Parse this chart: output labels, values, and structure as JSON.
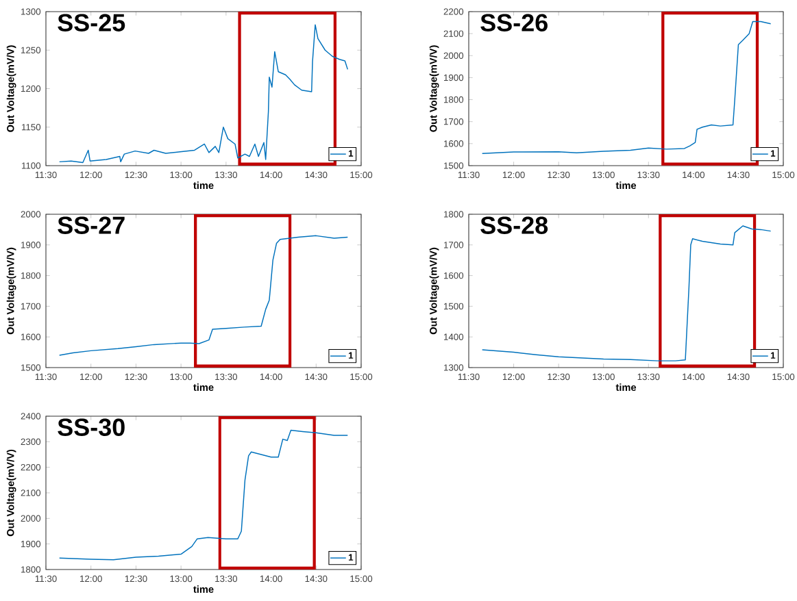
{
  "chart_data": [
    {
      "type": "line",
      "title": "SS-25",
      "xlabel": "time",
      "ylabel": "Out Voltage(mV/V)",
      "xlim": [
        11.5,
        15
      ],
      "ylim": [
        1100,
        1300
      ],
      "legend": "bottom right",
      "xticks": [
        {
          "value": 11.5,
          "label": "11:30"
        },
        {
          "value": 12,
          "label": "12:00"
        },
        {
          "value": 12.5,
          "label": "12:30"
        },
        {
          "value": 13,
          "label": "13:00"
        },
        {
          "value": 13.5,
          "label": "13:30"
        },
        {
          "value": 14,
          "label": "14:00"
        },
        {
          "value": 14.5,
          "label": "14:30"
        },
        {
          "value": 15,
          "label": "15:00"
        }
      ],
      "yticks": [
        1100,
        1150,
        1200,
        1250,
        1300
      ],
      "bands": [
        {
          "axis": "x",
          "from": 13.65,
          "to": 14.71
        }
      ],
      "x": [
        11.65,
        11.78,
        11.91,
        11.97,
        11.99,
        12.17,
        12.32,
        12.33,
        12.37,
        12.49,
        12.64,
        12.7,
        12.83,
        12.99,
        13.15,
        13.26,
        13.31,
        13.38,
        13.42,
        13.47,
        13.52,
        13.6,
        13.63,
        13.71,
        13.76,
        13.82,
        13.86,
        13.92,
        13.94,
        13.97,
        13.98,
        14.01,
        14.04,
        14.08,
        14.16,
        14.21,
        14.26,
        14.34,
        14.45,
        14.46,
        14.49,
        14.52,
        14.6,
        14.68,
        14.76,
        14.82,
        14.85
      ],
      "series": [
        {
          "name": "1",
          "color": "#0072bd",
          "values": [
            1105,
            1106,
            1104,
            1120,
            1106,
            1108,
            1112,
            1105,
            1115,
            1119,
            1116,
            1120,
            1116,
            1118,
            1120,
            1128,
            1117,
            1125,
            1117,
            1150,
            1135,
            1128,
            1110,
            1115,
            1112,
            1128,
            1112,
            1130,
            1108,
            1170,
            1215,
            1202,
            1248,
            1222,
            1218,
            1212,
            1205,
            1198,
            1196,
            1235,
            1283,
            1265,
            1250,
            1242,
            1238,
            1236,
            1225
          ]
        }
      ]
    },
    {
      "type": "line",
      "title": "SS-26",
      "xlabel": "time",
      "ylabel": "Out Voltage(mV/V)",
      "xlim": [
        11.5,
        15
      ],
      "ylim": [
        1500,
        2200
      ],
      "legend": "bottom right",
      "xticks": [
        {
          "value": 11.5,
          "label": "11:30"
        },
        {
          "value": 12,
          "label": "12:00"
        },
        {
          "value": 12.5,
          "label": "12:30"
        },
        {
          "value": 13,
          "label": "13:00"
        },
        {
          "value": 13.5,
          "label": "13:30"
        },
        {
          "value": 14,
          "label": "14:00"
        },
        {
          "value": 14.5,
          "label": "14:30"
        },
        {
          "value": 15,
          "label": "15:00"
        }
      ],
      "yticks": [
        1500,
        1600,
        1700,
        1800,
        1900,
        2000,
        2100,
        2200
      ],
      "bands": [
        {
          "axis": "x",
          "from": 13.66,
          "to": 14.71
        }
      ],
      "x": [
        11.65,
        12.0,
        12.5,
        12.7,
        13.0,
        13.3,
        13.5,
        13.7,
        13.9,
        13.96,
        14.02,
        14.04,
        14.1,
        14.2,
        14.3,
        14.44,
        14.46,
        14.5,
        14.55,
        14.62,
        14.66,
        14.75,
        14.86
      ],
      "series": [
        {
          "name": "1",
          "color": "#0072bd",
          "values": [
            1555,
            1562,
            1563,
            1558,
            1565,
            1570,
            1580,
            1575,
            1578,
            1590,
            1605,
            1665,
            1675,
            1685,
            1680,
            1685,
            1800,
            2050,
            2070,
            2100,
            2155,
            2155,
            2145
          ]
        }
      ]
    },
    {
      "type": "line",
      "title": "SS-27",
      "xlabel": "time",
      "ylabel": "Out Voltage(mV/V)",
      "xlim": [
        11.5,
        15
      ],
      "ylim": [
        1500,
        2000
      ],
      "legend": "bottom right",
      "xticks": [
        {
          "value": 11.5,
          "label": "11:30"
        },
        {
          "value": 12,
          "label": "12:00"
        },
        {
          "value": 12.5,
          "label": "12:30"
        },
        {
          "value": 13,
          "label": "13:00"
        },
        {
          "value": 13.5,
          "label": "13:30"
        },
        {
          "value": 14,
          "label": "14:00"
        },
        {
          "value": 14.5,
          "label": "14:30"
        },
        {
          "value": 15,
          "label": "15:00"
        }
      ],
      "yticks": [
        1500,
        1600,
        1700,
        1800,
        1900,
        2000
      ],
      "bands": [
        {
          "axis": "x",
          "from": 13.16,
          "to": 14.21
        }
      ],
      "x": [
        11.65,
        11.8,
        12.0,
        12.3,
        12.5,
        12.7,
        13.0,
        13.1,
        13.2,
        13.31,
        13.35,
        13.5,
        13.7,
        13.89,
        13.94,
        13.98,
        14.02,
        14.06,
        14.1,
        14.3,
        14.5,
        14.7,
        14.85
      ],
      "series": [
        {
          "name": "1",
          "color": "#0072bd",
          "values": [
            1540,
            1548,
            1555,
            1562,
            1568,
            1575,
            1580,
            1580,
            1578,
            1590,
            1625,
            1628,
            1632,
            1635,
            1690,
            1720,
            1850,
            1905,
            1918,
            1925,
            1930,
            1922,
            1925
          ]
        }
      ]
    },
    {
      "type": "line",
      "title": "SS-28",
      "xlabel": "time",
      "ylabel": "Out Voltage(mV/V)",
      "xlim": [
        11.5,
        15
      ],
      "ylim": [
        1300,
        1800
      ],
      "legend": "bottom right",
      "xticks": [
        {
          "value": 11.5,
          "label": "11:30"
        },
        {
          "value": 12,
          "label": "12:00"
        },
        {
          "value": 12.5,
          "label": "12:30"
        },
        {
          "value": 13,
          "label": "13:00"
        },
        {
          "value": 13.5,
          "label": "13:30"
        },
        {
          "value": 14,
          "label": "14:00"
        },
        {
          "value": 14.5,
          "label": "14:30"
        },
        {
          "value": 15,
          "label": "15:00"
        }
      ],
      "yticks": [
        1300,
        1400,
        1500,
        1600,
        1700,
        1800
      ],
      "bands": [
        {
          "axis": "x",
          "from": 13.63,
          "to": 14.68
        }
      ],
      "x": [
        11.65,
        12.0,
        12.25,
        12.5,
        13.0,
        13.3,
        13.6,
        13.8,
        13.91,
        13.95,
        13.97,
        13.99,
        14.1,
        14.3,
        14.44,
        14.46,
        14.55,
        14.65,
        14.75,
        14.86
      ],
      "series": [
        {
          "name": "1",
          "color": "#0072bd",
          "values": [
            1358,
            1350,
            1342,
            1335,
            1328,
            1326,
            1322,
            1322,
            1325,
            1560,
            1700,
            1720,
            1712,
            1703,
            1700,
            1740,
            1762,
            1752,
            1750,
            1745
          ]
        }
      ]
    },
    {
      "type": "line",
      "title": "SS-30",
      "xlabel": "time",
      "ylabel": "Out Voltage(mV/V)",
      "xlim": [
        11.5,
        15
      ],
      "ylim": [
        1800,
        2400
      ],
      "legend": "bottom right",
      "xticks": [
        {
          "value": 11.5,
          "label": "11:30"
        },
        {
          "value": 12,
          "label": "12:00"
        },
        {
          "value": 12.5,
          "label": "12:30"
        },
        {
          "value": 13,
          "label": "13:00"
        },
        {
          "value": 13.5,
          "label": "13:30"
        },
        {
          "value": 14,
          "label": "14:00"
        },
        {
          "value": 14.5,
          "label": "14:30"
        },
        {
          "value": 15,
          "label": "15:00"
        }
      ],
      "yticks": [
        1800,
        1900,
        2000,
        2100,
        2200,
        2300,
        2400
      ],
      "bands": [
        {
          "axis": "x",
          "from": 13.43,
          "to": 14.48
        }
      ],
      "x": [
        11.65,
        12.0,
        12.25,
        12.5,
        12.75,
        13.0,
        13.12,
        13.18,
        13.3,
        13.5,
        13.63,
        13.67,
        13.71,
        13.75,
        13.78,
        14.0,
        14.08,
        14.13,
        14.18,
        14.22,
        14.35,
        14.5,
        14.7,
        14.85
      ],
      "series": [
        {
          "name": "1",
          "color": "#0072bd",
          "values": [
            1845,
            1840,
            1838,
            1848,
            1852,
            1860,
            1890,
            1920,
            1925,
            1920,
            1920,
            1950,
            2150,
            2245,
            2260,
            2240,
            2240,
            2310,
            2305,
            2345,
            2340,
            2335,
            2325,
            2325
          ]
        }
      ]
    }
  ]
}
